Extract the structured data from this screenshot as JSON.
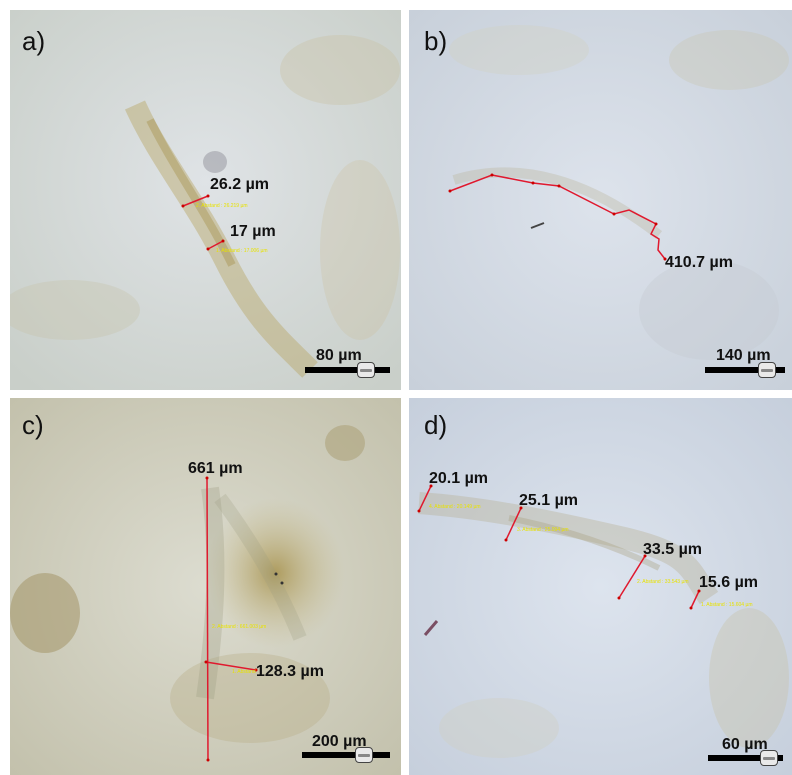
{
  "colors": {
    "background_a": "#d8dfe6",
    "background_b": "#cfd8e4",
    "fiber": "#b7a56a",
    "measure_line": "#e0192e",
    "label_sub": "#e8e200"
  },
  "panels": [
    {
      "label": "a)",
      "measurements": [
        {
          "value": "26.2 µm",
          "sub": "2. Abstand : 26.219 µm"
        },
        {
          "value": "17 µm",
          "sub": "1. Abstand : 17.006 µm"
        }
      ],
      "scale_bar": "80 µm"
    },
    {
      "label": "b)",
      "measurements": [
        {
          "value": "410.7 µm",
          "sub": ""
        }
      ],
      "scale_bar": "140 µm"
    },
    {
      "label": "c)",
      "measurements": [
        {
          "value": "661 µm",
          "sub": "2. Abstand : 661.003 µm"
        },
        {
          "value": "128.3 µm",
          "sub": "1. Abstand"
        }
      ],
      "scale_bar": "200 µm"
    },
    {
      "label": "d)",
      "measurements": [
        {
          "value": "20.1 µm",
          "sub": "4. Abstand : 20.149 µm"
        },
        {
          "value": "25.1 µm",
          "sub": "3. Abstand : 25.094 µm"
        },
        {
          "value": "33.5 µm",
          "sub": "2. Abstand : 33.543 µm"
        },
        {
          "value": "15.6 µm",
          "sub": "1. Abstand : 15.604 µm"
        }
      ],
      "scale_bar": "60 µm"
    }
  ]
}
